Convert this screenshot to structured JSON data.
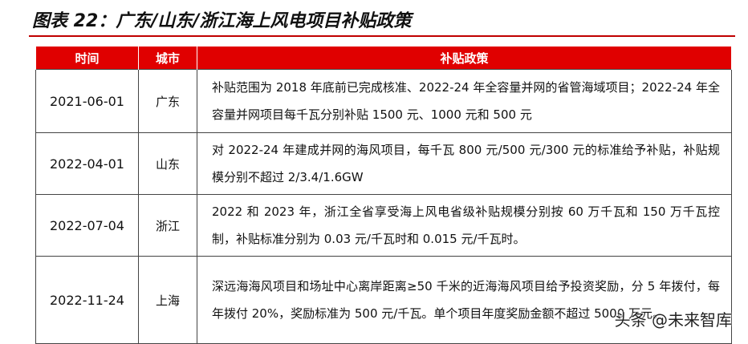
{
  "header": {
    "title": "图表 22：广东/山东/浙江海上风电项目补贴政策"
  },
  "table": {
    "columns": [
      "时间",
      "城市",
      "补贴政策"
    ],
    "rows": [
      [
        "2021-06-01",
        "广东",
        "补贴范围为 2018 年底前已完成核准、2022-24 年全容量并网的省管海域项目；2022-24 年全容量并网项目每千瓦分别补贴 1500 元、1000 元和 500 元"
      ],
      [
        "2022-04-01",
        "山东",
        "对 2022-24 年建成并网的海风项目，每千瓦 800 元/500 元/300 元的标准给予补贴，补贴规模分别不超过 2/3.4/1.6GW"
      ],
      [
        "2022-07-04",
        "浙江",
        "2022 和 2023 年，浙江全省享受海上风电省级补贴规模分别按 60 万千瓦和 150 万千瓦控制，补贴标准分别为 0.03 元/千瓦时和 0.015 元/千瓦时。"
      ],
      [
        "2022-11-24",
        "上海",
        "深远海海风项目和场址中心离岸距离≥50 千米的近海海风项目给予投资奖励，分 5 年拨付，每年拨付 20%，奖励标准为 500 元/千瓦。单个项目年度奖励金额不超过 5000 万元。"
      ]
    ]
  },
  "watermark": "头条 @未来智库"
}
